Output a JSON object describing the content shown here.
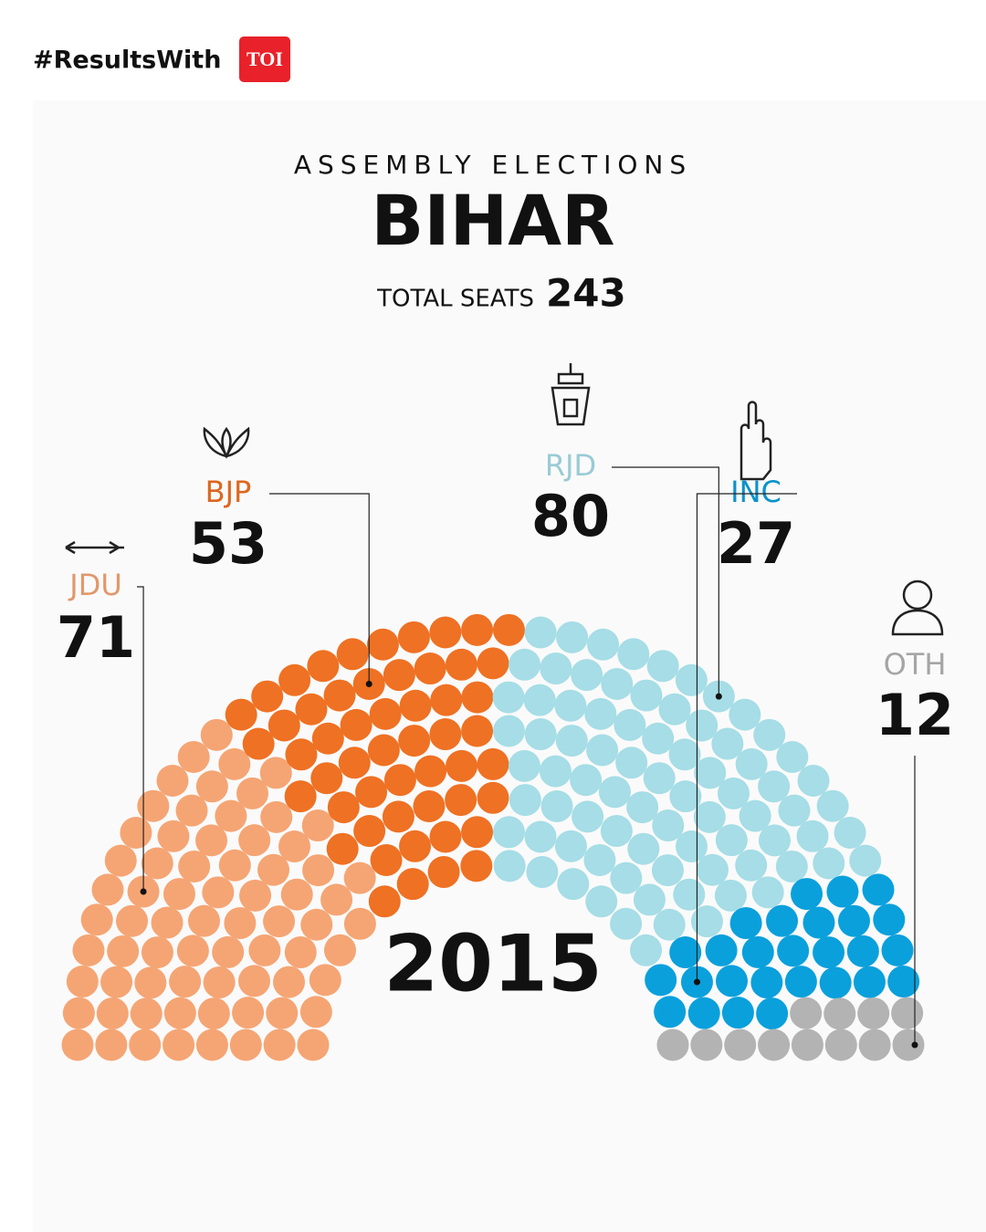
{
  "header": {
    "hashtag": "#ResultsWith",
    "brand": "TOI"
  },
  "chart_data": {
    "type": "parliament",
    "supertitle": "ASSEMBLY ELECTIONS",
    "title": "BIHAR",
    "total_label": "TOTAL SEATS",
    "total": 243,
    "center_label": "2015",
    "series": [
      {
        "name": "JDU",
        "color": "#f5a574",
        "values": [
          71
        ]
      },
      {
        "name": "BJP",
        "color": "#ef7123",
        "values": [
          53
        ]
      },
      {
        "name": "RJD",
        "color": "#a6dde6",
        "values": [
          80
        ]
      },
      {
        "name": "INC",
        "color": "#0aa0dc",
        "values": [
          27
        ]
      },
      {
        "name": "OTH",
        "color": "#b3b3b4",
        "values": [
          12
        ]
      }
    ]
  }
}
